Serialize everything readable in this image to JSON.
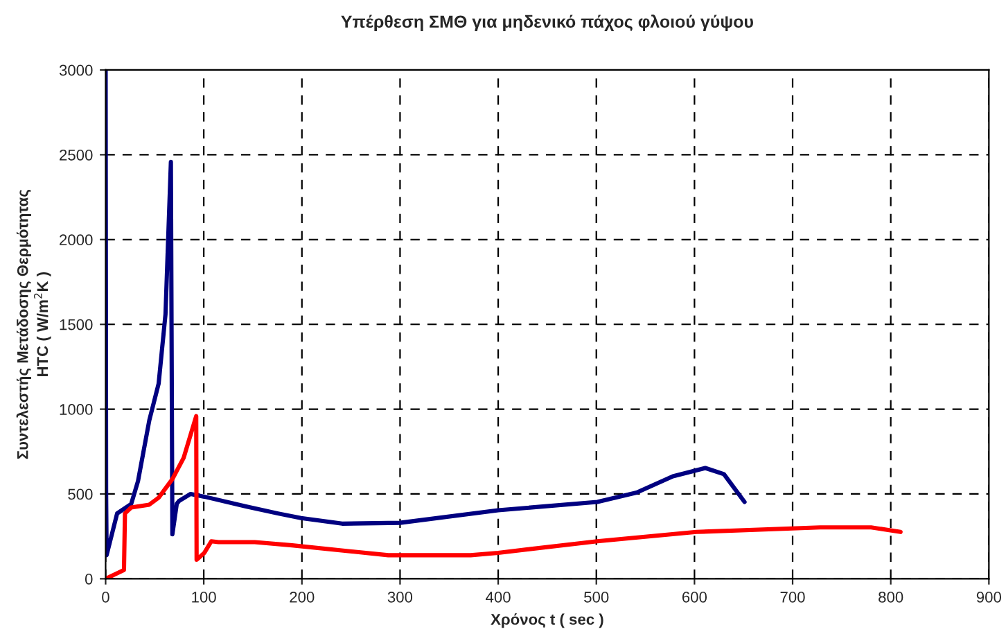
{
  "chart_data": {
    "type": "line",
    "title": "Υπέρθεση ΣΜΘ για μηδενικό πάχος φλοιού γύψου",
    "xlabel": "Χρόνος t ( sec )",
    "ylabel": "Συντελεστής Μετάδοσης Θερμότητας\nHTC ( W/m$^{2}$K )",
    "xlim": [
      0,
      900
    ],
    "ylim": [
      0,
      3000
    ],
    "xticks": [
      0,
      100,
      200,
      300,
      400,
      500,
      600,
      700,
      800,
      900
    ],
    "yticks": [
      0,
      500,
      1000,
      1500,
      2000,
      2500,
      3000
    ],
    "grid": true,
    "line_style": "solid",
    "marker": "none",
    "series": [
      {
        "color": "#000080",
        "x": [
          0,
          0.5,
          1,
          11.7,
          26,
          33,
          44.5,
          54,
          61,
          66.5,
          68,
          72.5,
          75,
          86.6,
          100.6,
          143,
          175.6,
          199,
          241,
          300,
          400,
          501,
          541,
          578,
          611,
          630,
          651
        ],
        "values": [
          3000,
          500,
          139,
          385,
          440,
          576,
          934,
          1150,
          1560,
          2457,
          262,
          442,
          460,
          500,
          484,
          426,
          385,
          358,
          325,
          330,
          404,
          453,
          508,
          604,
          653,
          617,
          453
        ]
      },
      {
        "color": "#ff0000",
        "x": [
          0,
          18.7,
          19.7,
          26,
          44.5,
          54,
          68,
          79.5,
          92.3,
          92.7,
          100.6,
          107.7,
          115,
          152,
          190,
          288,
          372,
          400,
          501,
          602,
          728,
          780,
          810
        ],
        "values": [
          0,
          52,
          385,
          420,
          437,
          478,
          587,
          713,
          959,
          112,
          153,
          221,
          216,
          216,
          197,
          139,
          139,
          153,
          221,
          276,
          303,
          303,
          276
        ]
      }
    ]
  }
}
